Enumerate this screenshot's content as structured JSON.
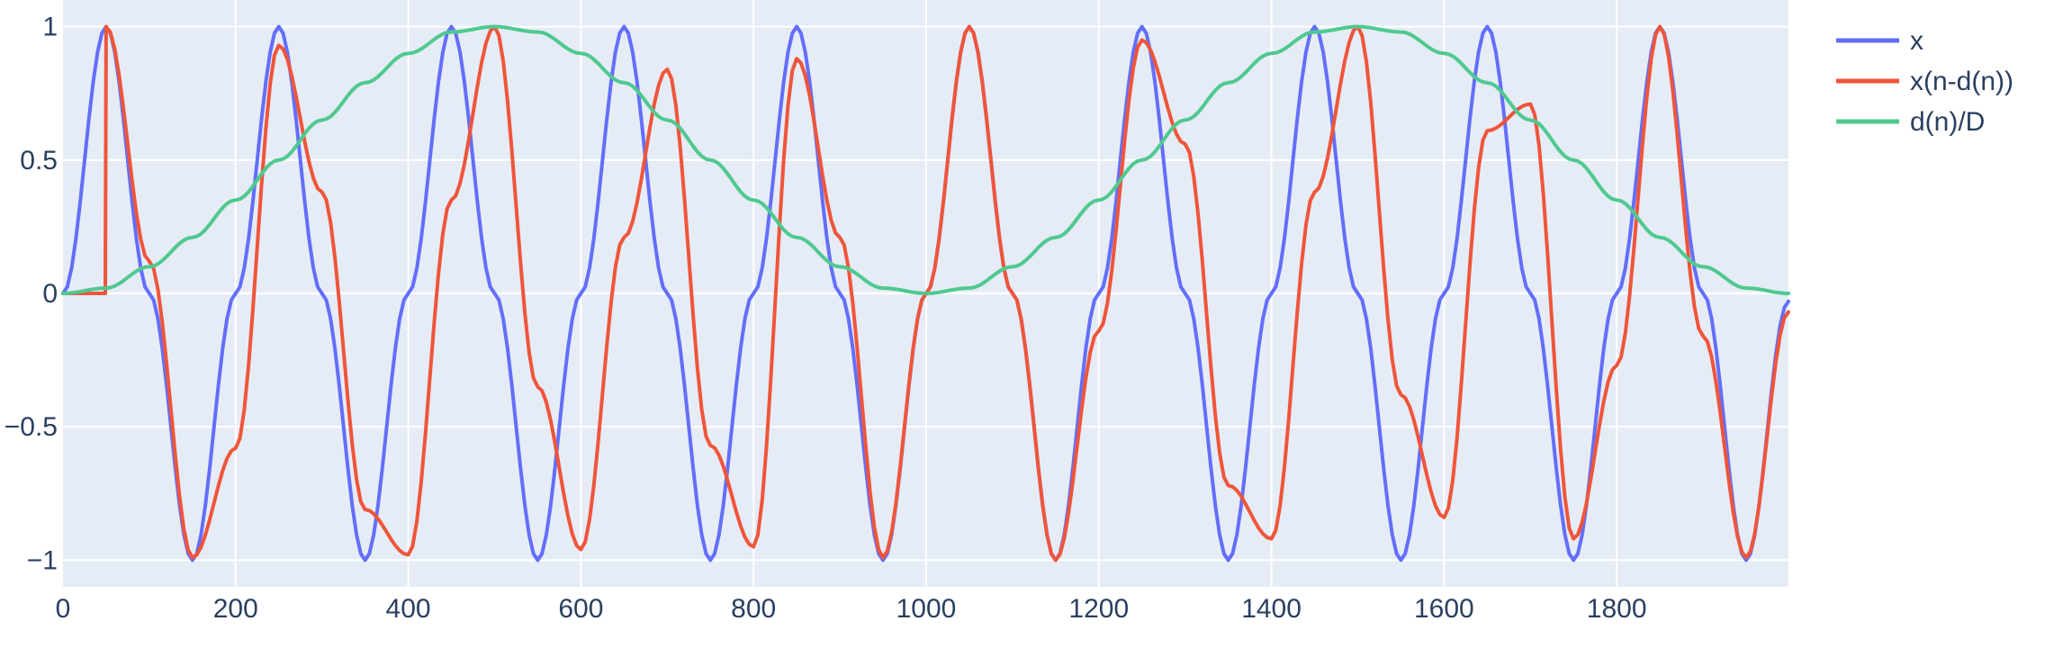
{
  "chart_data": {
    "type": "line",
    "xlim": [
      0,
      1999
    ],
    "ylim": [
      -1.1,
      1.1
    ],
    "xticks": [
      0,
      200,
      400,
      600,
      800,
      1000,
      1200,
      1400,
      1600,
      1800
    ],
    "xtick_labels": [
      "0",
      "200",
      "400",
      "600",
      "800",
      "1000",
      "1200",
      "1400",
      "1600",
      "1800"
    ],
    "yticks": [
      -1,
      -0.5,
      0,
      0.5,
      1
    ],
    "ytick_labels": [
      "−1",
      "−0.5",
      "0",
      "0.5",
      "1"
    ],
    "grid": true,
    "legend_position": "right",
    "colors": {
      "plot_background": "#e5ecf6",
      "grid": "#ffffff",
      "text": "#2a3f5f"
    },
    "series": [
      {
        "name": "x",
        "color": "#636efa",
        "x": [
          0,
          50,
          100,
          150,
          200,
          250,
          300,
          350,
          400,
          450,
          500,
          550,
          600,
          650,
          700,
          750,
          800,
          850,
          900,
          950,
          1000,
          1050,
          1100,
          1150,
          1200,
          1250,
          1300,
          1350,
          1400,
          1450,
          1500,
          1550,
          1600,
          1650,
          1700,
          1750,
          1800,
          1850,
          1900,
          1950,
          1999
        ],
        "y": [
          0,
          1,
          0,
          -1,
          0,
          1,
          0,
          -1,
          0,
          1,
          0,
          -1,
          0,
          1,
          0,
          -1,
          0,
          1,
          0,
          -1,
          0,
          1,
          0,
          -1,
          0,
          1,
          0,
          -1,
          0,
          1,
          0,
          -1,
          0,
          1,
          0,
          -1,
          0,
          1,
          0,
          -1,
          -0.03
        ]
      },
      {
        "name": "x(n-d(n))",
        "color": "#ef553b",
        "x": [
          0,
          49,
          50,
          100,
          150,
          200,
          250,
          300,
          350,
          400,
          450,
          500,
          550,
          600,
          650,
          700,
          750,
          800,
          850,
          900,
          950,
          1000,
          1050,
          1100,
          1150,
          1200,
          1250,
          1300,
          1350,
          1400,
          1450,
          1500,
          1550,
          1600,
          1650,
          1700,
          1750,
          1800,
          1850,
          1900,
          1950,
          1999
        ],
        "y": [
          0,
          0,
          1,
          0.12,
          -0.99,
          -0.58,
          0.93,
          0.38,
          -0.81,
          -0.98,
          0.35,
          1,
          -0.35,
          -0.96,
          0.21,
          0.84,
          -0.57,
          -0.95,
          0.88,
          0.21,
          -0.99,
          0,
          1,
          0,
          -1,
          -0.14,
          0.95,
          0.56,
          -0.72,
          -0.92,
          0.38,
          1,
          -0.38,
          -0.84,
          0.61,
          0.71,
          -0.92,
          -0.27,
          1,
          -0.16,
          -0.99,
          -0.07
        ]
      },
      {
        "name": "d(n)/D",
        "color": "#4fc98f",
        "x": [
          0,
          50,
          100,
          150,
          200,
          250,
          300,
          350,
          400,
          450,
          500,
          550,
          600,
          650,
          700,
          750,
          800,
          850,
          900,
          950,
          1000,
          1050,
          1100,
          1150,
          1200,
          1250,
          1300,
          1350,
          1400,
          1450,
          1500,
          1550,
          1600,
          1650,
          1700,
          1750,
          1800,
          1850,
          1900,
          1950,
          1999
        ],
        "y": [
          0,
          0.02,
          0.1,
          0.21,
          0.35,
          0.5,
          0.65,
          0.79,
          0.9,
          0.98,
          1,
          0.98,
          0.9,
          0.79,
          0.65,
          0.5,
          0.35,
          0.21,
          0.1,
          0.02,
          0,
          0.02,
          0.1,
          0.21,
          0.35,
          0.5,
          0.65,
          0.79,
          0.9,
          0.98,
          1,
          0.98,
          0.9,
          0.79,
          0.65,
          0.5,
          0.35,
          0.21,
          0.1,
          0.02,
          0
        ]
      }
    ]
  }
}
